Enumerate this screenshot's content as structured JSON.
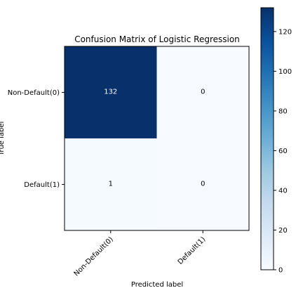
{
  "chart_data": {
    "type": "heatmap",
    "title": "Confusion Matrix of Logistic Regression",
    "xlabel": "Predicted label",
    "ylabel": "True label",
    "row_labels": [
      "Non-Default(0)",
      "Default(1)"
    ],
    "col_labels": [
      "Non-Default(0)",
      "Default(1)"
    ],
    "matrix": [
      [
        132,
        0
      ],
      [
        1,
        0
      ]
    ],
    "cell_text": [
      [
        "132",
        "0"
      ],
      [
        "1",
        "0"
      ]
    ],
    "colormap": "Blues",
    "color_low": "#f7fbff",
    "color_high": "#08306b",
    "text_color_dark": "#000000",
    "text_color_light": "#ffffff",
    "colorbar": {
      "min": 0,
      "max": 132,
      "ticks": [
        0,
        20,
        40,
        60,
        80,
        100,
        120
      ],
      "tick_labels": [
        "0",
        "20",
        "40",
        "60",
        "80",
        "100",
        "120"
      ]
    }
  }
}
